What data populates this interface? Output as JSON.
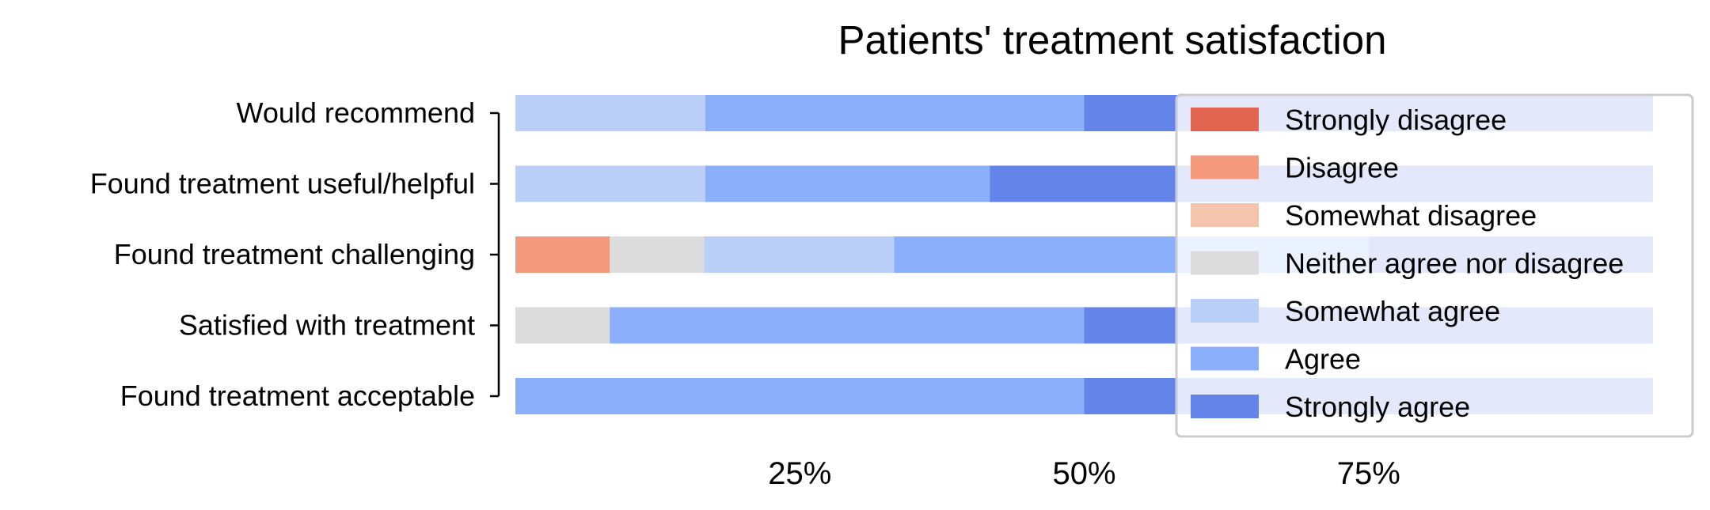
{
  "chart_data": {
    "type": "bar",
    "orientation": "horizontal",
    "stacked": true,
    "title": "Patients' treatment satisfaction",
    "categories": [
      "Would recommend",
      "Found treatment useful/helpful",
      "Found treatment challenging",
      "Satisfied with treatment",
      "Found treatment acceptable"
    ],
    "series": [
      {
        "name": "Strongly disagree",
        "color": "#e0644f",
        "values": [
          0,
          0,
          0,
          0,
          0
        ]
      },
      {
        "name": "Disagree",
        "color": "#f4997b",
        "values": [
          0,
          0,
          8.3,
          0,
          0
        ]
      },
      {
        "name": "Somewhat disagree",
        "color": "#f5c4ad",
        "values": [
          0,
          0,
          0,
          0,
          0
        ]
      },
      {
        "name": "Neither agree nor disagree",
        "color": "#dcdcdc",
        "values": [
          0,
          0,
          8.3,
          8.3,
          0
        ]
      },
      {
        "name": "Somewhat agree",
        "color": "#b9cff8",
        "values": [
          16.7,
          16.7,
          16.7,
          0,
          0
        ]
      },
      {
        "name": "Agree",
        "color": "#8caffb",
        "values": [
          33.3,
          25.0,
          41.7,
          41.7,
          50.0
        ]
      },
      {
        "name": "Strongly agree",
        "color": "#6584e9",
        "values": [
          50.0,
          58.3,
          25.0,
          50.0,
          50.0
        ]
      }
    ],
    "xlim": [
      0,
      100
    ],
    "xticks": [
      25,
      50,
      75
    ],
    "xtick_labels": [
      "25%",
      "50%",
      "75%"
    ],
    "xlabel": "",
    "ylabel": "",
    "grid": false,
    "legend_position": "top-right",
    "background_bar_color": "#e0e5f8"
  }
}
